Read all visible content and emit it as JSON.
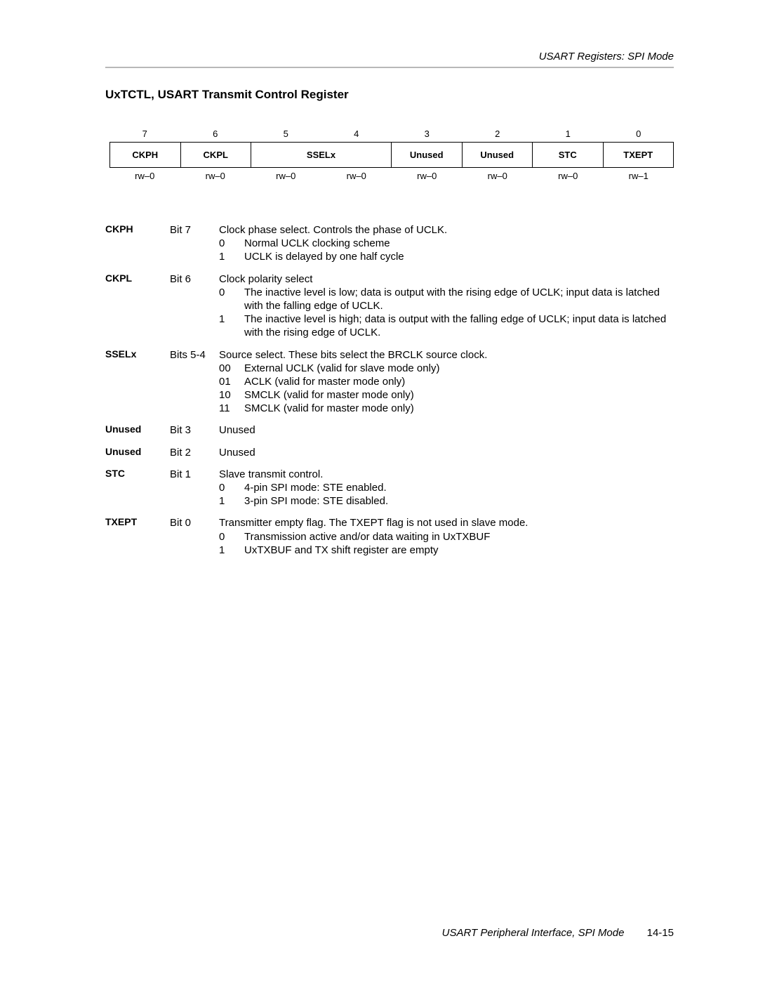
{
  "page": {
    "running_head": "USART Registers: SPI Mode",
    "section_title": "UxTCTL, USART Transmit Control Register",
    "footer_book": "USART Peripheral Interface, SPI Mode",
    "footer_page": "14-15"
  },
  "colors": {
    "text": "#000000",
    "rule": "#b8b8b8",
    "border": "#000000",
    "background": "#ffffff"
  },
  "bit_diagram": {
    "bit_numbers": [
      "7",
      "6",
      "5",
      "4",
      "3",
      "2",
      "1",
      "0"
    ],
    "fields": [
      {
        "label": "CKPH",
        "span": 1
      },
      {
        "label": "CKPL",
        "span": 1
      },
      {
        "label": "SSELx",
        "span": 2
      },
      {
        "label": "Unused",
        "span": 1
      },
      {
        "label": "Unused",
        "span": 1
      },
      {
        "label": "STC",
        "span": 1
      },
      {
        "label": "TXEPT",
        "span": 1
      }
    ],
    "rw": [
      "rw–0",
      "rw–0",
      "rw–0",
      "rw–0",
      "rw–0",
      "rw–0",
      "rw–0",
      "rw–1"
    ]
  },
  "descriptions": [
    {
      "name": "CKPH",
      "bit": "Bit 7",
      "summary": "Clock phase select. Controls the phase of UCLK.",
      "options": [
        {
          "k": "0",
          "v": "Normal UCLK clocking scheme"
        },
        {
          "k": "1",
          "v": "UCLK is delayed by one half cycle"
        }
      ]
    },
    {
      "name": "CKPL",
      "bit": "Bit 6",
      "summary": "Clock polarity select",
      "options": [
        {
          "k": "0",
          "v": "The inactive level is low; data is output with the rising edge of UCLK; input data is latched with the falling edge of UCLK."
        },
        {
          "k": "1",
          "v": "The inactive level is high; data is output with the falling edge of UCLK; input data is latched with the rising edge of UCLK."
        }
      ]
    },
    {
      "name": "SSELx",
      "bit": "Bits 5-4",
      "summary": "Source select. These bits select the BRCLK source clock.",
      "options": [
        {
          "k": "00",
          "v": "External UCLK (valid for slave mode only)"
        },
        {
          "k": "01",
          "v": "ACLK (valid for master mode only)"
        },
        {
          "k": "10",
          "v": "SMCLK (valid for master mode only)"
        },
        {
          "k": "11",
          "v": "SMCLK (valid for master mode only)"
        }
      ]
    },
    {
      "name": "Unused",
      "bit": "Bit 3",
      "summary": "Unused",
      "options": []
    },
    {
      "name": "Unused",
      "bit": "Bit 2",
      "summary": "Unused",
      "options": []
    },
    {
      "name": "STC",
      "bit": "Bit 1",
      "summary": "Slave transmit control.",
      "options": [
        {
          "k": "0",
          "v": "4-pin SPI mode: STE enabled."
        },
        {
          "k": "1",
          "v": "3-pin SPI mode: STE disabled."
        }
      ]
    },
    {
      "name": "TXEPT",
      "bit": "Bit 0",
      "summary": "Transmitter empty flag. The TXEPT flag is not used in slave mode.",
      "options": [
        {
          "k": "0",
          "v": "Transmission active and/or data waiting in UxTXBUF"
        },
        {
          "k": "1",
          "v": "UxTXBUF and TX shift register are empty"
        }
      ]
    }
  ]
}
